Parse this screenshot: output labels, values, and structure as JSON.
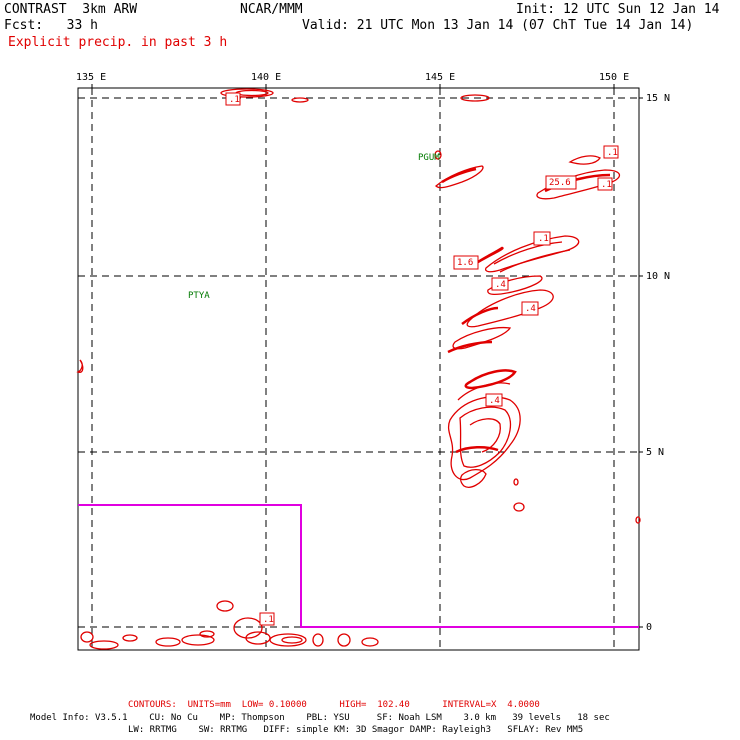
{
  "header": {
    "model": "CONTRAST  3km ARW",
    "org": "NCAR/MMM",
    "init": "Init: 12 UTC Sun 12 Jan 14",
    "fcst": "Fcst:   33 h",
    "valid": "Valid: 21 UTC Mon 13 Jan 14 (07 ChT Tue 14 Jan 14)",
    "field": "Explicit precip. in past 3 h"
  },
  "axes": {
    "lon_labels": [
      "135 E",
      "140 E",
      "145 E",
      "150 E"
    ],
    "lat_labels": [
      "15 N",
      "10 N",
      "5 N",
      "0"
    ]
  },
  "stations": [
    "PGUM",
    "PTYA"
  ],
  "contour_labels": [
    ".1",
    ".1",
    ".1",
    "25.6",
    ".1",
    "1.6",
    ".4",
    ".4",
    ".4",
    ".1"
  ],
  "footer": {
    "contours": "CONTOURS:  UNITS=mm  LOW= 0.10000      HIGH=  102.40      INTERVAL=X  4.0000",
    "model_info_1": "Model Info: V3.5.1    CU: No Cu    MP: Thompson    PBL: YSU     SF: Noah LSM    3.0 km   39 levels   18 sec",
    "model_info_2": "LW: RRTMG    SW: RRTMG   DIFF: simple KM: 3D Smagor DAMP: Rayleigh3   SFLAY: Rev MM5"
  },
  "colors": {
    "precip": "#e00000",
    "station": "#007a00",
    "region_box": "#e000e0",
    "grid": "#000000"
  }
}
